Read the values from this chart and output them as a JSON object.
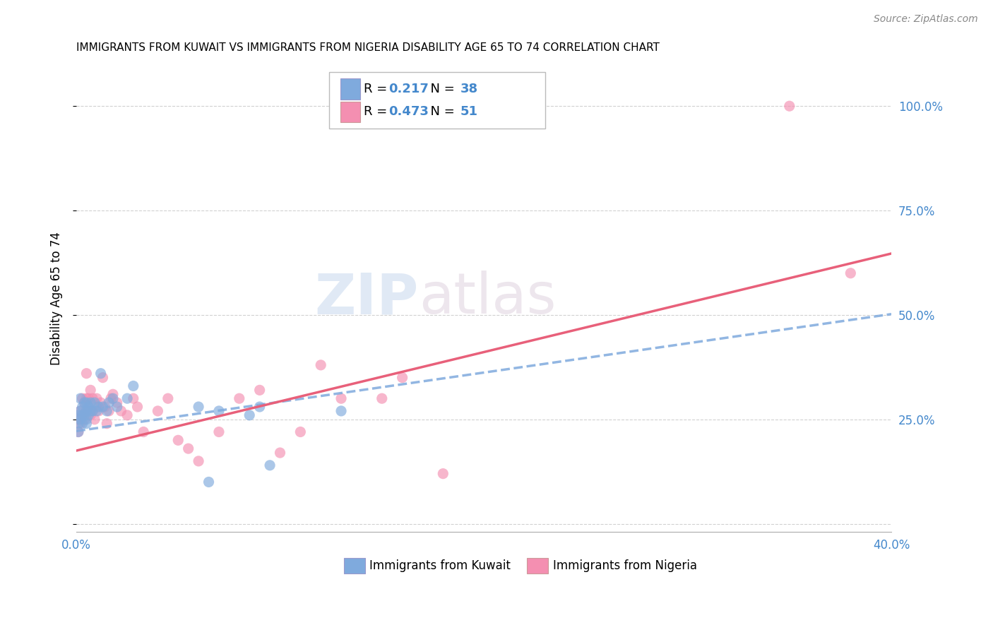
{
  "title": "IMMIGRANTS FROM KUWAIT VS IMMIGRANTS FROM NIGERIA DISABILITY AGE 65 TO 74 CORRELATION CHART",
  "source": "Source: ZipAtlas.com",
  "ylabel": "Disability Age 65 to 74",
  "xlabel_kuwait": "Immigrants from Kuwait",
  "xlabel_nigeria": "Immigrants from Nigeria",
  "kuwait_R": 0.217,
  "kuwait_N": 38,
  "nigeria_R": 0.473,
  "nigeria_N": 51,
  "xlim": [
    0.0,
    0.4
  ],
  "ylim": [
    -0.02,
    1.1
  ],
  "xticks": [
    0.0,
    0.1,
    0.2,
    0.3,
    0.4
  ],
  "yticks": [
    0.0,
    0.25,
    0.5,
    0.75,
    1.0
  ],
  "color_kuwait": "#7faadd",
  "color_nigeria": "#f48fb1",
  "color_kuwait_line": "#7faadd",
  "color_nigeria_line": "#e8607a",
  "color_axis_labels": "#4488cc",
  "watermark_zip": "ZIP",
  "watermark_atlas": "atlas",
  "kuwait_points_x": [
    0.001,
    0.001,
    0.001,
    0.002,
    0.002,
    0.002,
    0.003,
    0.003,
    0.003,
    0.004,
    0.004,
    0.005,
    0.005,
    0.005,
    0.005,
    0.006,
    0.006,
    0.007,
    0.007,
    0.008,
    0.009,
    0.01,
    0.011,
    0.012,
    0.013,
    0.015,
    0.016,
    0.018,
    0.02,
    0.025,
    0.028,
    0.06,
    0.065,
    0.07,
    0.085,
    0.09,
    0.095,
    0.13
  ],
  "kuwait_points_y": [
    0.24,
    0.26,
    0.22,
    0.25,
    0.27,
    0.3,
    0.26,
    0.28,
    0.24,
    0.26,
    0.29,
    0.25,
    0.27,
    0.29,
    0.24,
    0.26,
    0.28,
    0.27,
    0.29,
    0.27,
    0.29,
    0.27,
    0.28,
    0.36,
    0.28,
    0.27,
    0.29,
    0.3,
    0.28,
    0.3,
    0.33,
    0.28,
    0.1,
    0.27,
    0.26,
    0.28,
    0.14,
    0.27
  ],
  "nigeria_points_x": [
    0.001,
    0.001,
    0.002,
    0.002,
    0.003,
    0.003,
    0.004,
    0.004,
    0.005,
    0.005,
    0.005,
    0.006,
    0.006,
    0.007,
    0.007,
    0.008,
    0.008,
    0.009,
    0.01,
    0.01,
    0.011,
    0.012,
    0.013,
    0.014,
    0.015,
    0.016,
    0.017,
    0.018,
    0.02,
    0.022,
    0.025,
    0.028,
    0.03,
    0.033,
    0.04,
    0.045,
    0.05,
    0.055,
    0.06,
    0.07,
    0.08,
    0.09,
    0.1,
    0.11,
    0.12,
    0.13,
    0.15,
    0.16,
    0.18,
    0.35,
    0.38
  ],
  "nigeria_points_y": [
    0.22,
    0.25,
    0.24,
    0.27,
    0.26,
    0.3,
    0.25,
    0.29,
    0.27,
    0.3,
    0.36,
    0.28,
    0.3,
    0.26,
    0.32,
    0.27,
    0.3,
    0.25,
    0.28,
    0.3,
    0.27,
    0.29,
    0.35,
    0.28,
    0.24,
    0.27,
    0.3,
    0.31,
    0.29,
    0.27,
    0.26,
    0.3,
    0.28,
    0.22,
    0.27,
    0.3,
    0.2,
    0.18,
    0.15,
    0.22,
    0.3,
    0.32,
    0.17,
    0.22,
    0.38,
    0.3,
    0.3,
    0.35,
    0.12,
    1.0,
    0.6
  ]
}
